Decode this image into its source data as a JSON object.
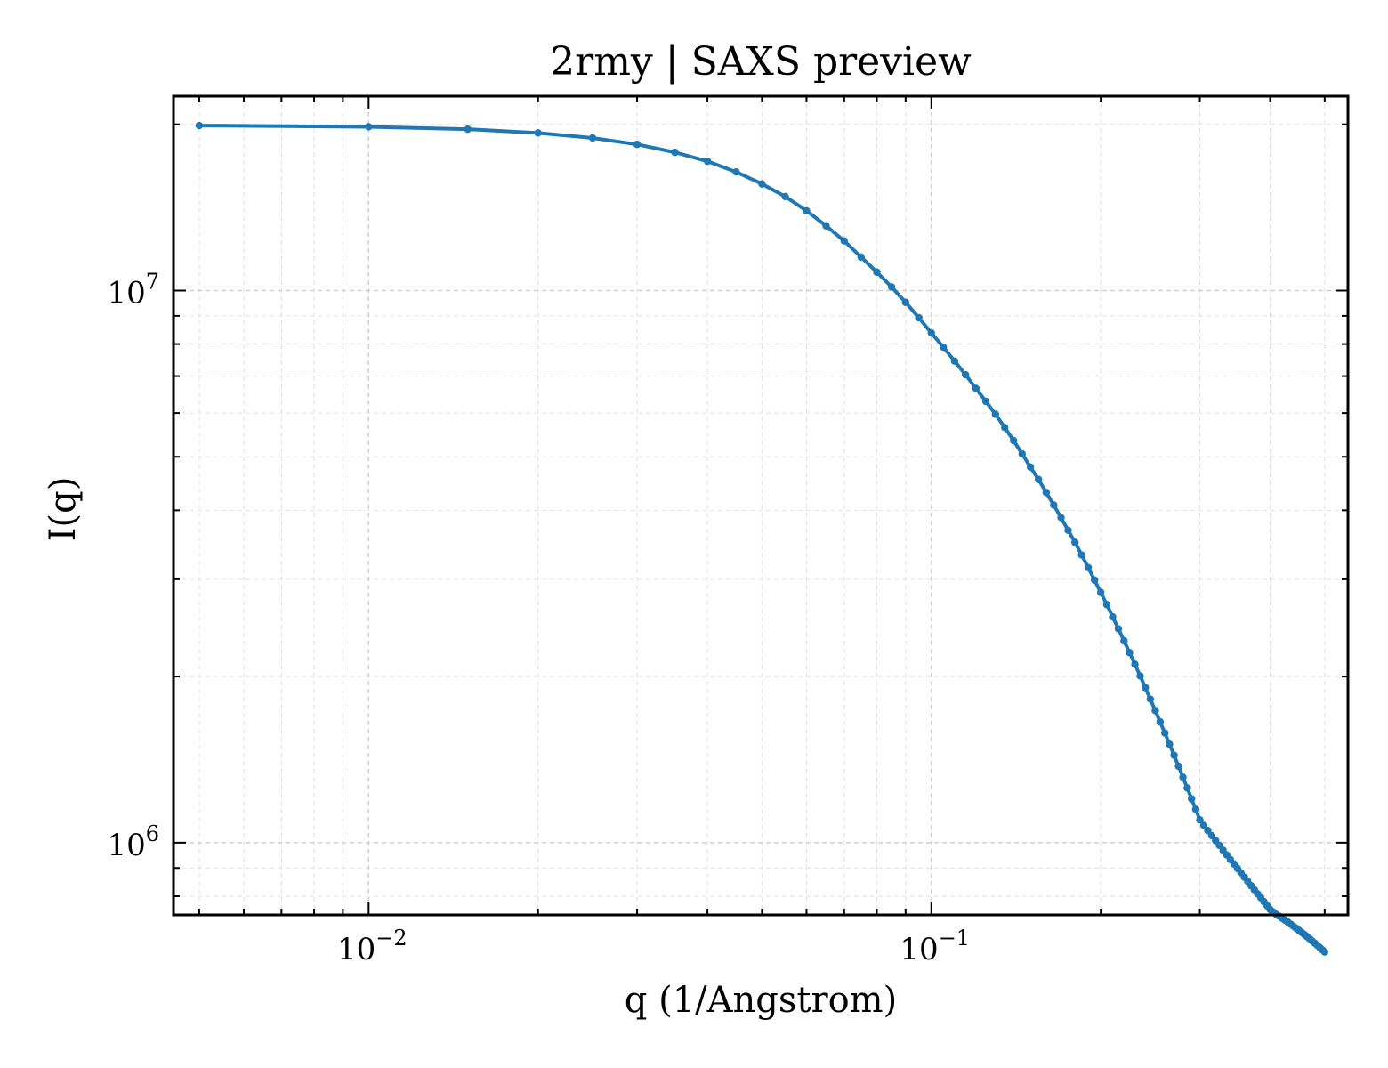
{
  "chart_data": {
    "type": "line",
    "title": "2rmy | SAXS preview",
    "xlabel": "q (1/Angstrom)",
    "ylabel": "I(q)",
    "xscale": "log",
    "yscale": "log",
    "xlim": [
      0.0045,
      0.55
    ],
    "ylim": [
      740000,
      22500000
    ],
    "grid": true,
    "series_color": "#1f77b4",
    "x_ticks": [
      {
        "value": 0.01,
        "base": "10",
        "exp": "−2"
      },
      {
        "value": 0.1,
        "base": "10",
        "exp": "−1"
      }
    ],
    "y_ticks": [
      {
        "value": 1000000,
        "base": "10",
        "exp": "6"
      },
      {
        "value": 10000000,
        "base": "10",
        "exp": "7"
      }
    ],
    "series": [
      {
        "x": [
          0.005,
          0.01,
          0.015,
          0.02,
          0.025,
          0.03,
          0.035,
          0.04,
          0.045,
          0.05,
          0.055,
          0.06,
          0.065,
          0.07,
          0.075,
          0.08,
          0.085,
          0.09,
          0.095,
          0.1,
          0.105,
          0.11,
          0.115,
          0.12,
          0.125,
          0.13,
          0.135,
          0.14,
          0.145,
          0.15,
          0.155,
          0.16,
          0.165,
          0.17,
          0.175,
          0.18,
          0.185,
          0.19,
          0.195,
          0.2,
          0.205,
          0.21,
          0.215,
          0.22,
          0.225,
          0.23,
          0.235,
          0.24,
          0.245,
          0.25,
          0.255,
          0.26,
          0.265,
          0.27,
          0.275,
          0.28,
          0.285,
          0.29,
          0.295,
          0.3,
          0.305,
          0.31,
          0.315,
          0.32,
          0.325,
          0.33,
          0.335,
          0.34,
          0.345,
          0.35,
          0.355,
          0.36,
          0.365,
          0.37,
          0.375,
          0.38,
          0.385,
          0.39,
          0.395,
          0.4,
          0.405,
          0.41,
          0.415,
          0.42,
          0.425,
          0.43,
          0.435,
          0.44,
          0.445,
          0.45,
          0.455,
          0.46,
          0.465,
          0.47,
          0.475,
          0.48,
          0.485,
          0.49,
          0.495,
          0.5
        ],
        "y": [
          19900000,
          19800000,
          19600000,
          19300000,
          18900000,
          18400000,
          17800000,
          17150000,
          16400000,
          15600000,
          14800000,
          13950000,
          13100000,
          12300000,
          11500000,
          10800000,
          10150000,
          9520000,
          8930000,
          8380000,
          7900000,
          7450000,
          7040000,
          6650000,
          6300000,
          5970000,
          5650000,
          5350000,
          5060000,
          4790000,
          4550000,
          4310000,
          4090000,
          3880000,
          3680000,
          3500000,
          3320000,
          3150000,
          2990000,
          2840000,
          2700000,
          2565000,
          2440000,
          2320000,
          2210000,
          2105000,
          2005000,
          1910000,
          1820000,
          1735000,
          1655000,
          1580000,
          1508000,
          1440000,
          1375000,
          1314000,
          1256000,
          1201000,
          1149000,
          1100000,
          1075000,
          1052000,
          1030000,
          1009000,
          989000,
          969000,
          950000,
          932000,
          915000,
          898000,
          882000,
          866000,
          851000,
          836000,
          822000,
          808000,
          795000,
          782000,
          769000,
          757000,
          749000,
          742000,
          736000,
          730000,
          724000,
          718000,
          712000,
          706000,
          700000,
          694000,
          688000,
          682000,
          676000,
          670000,
          664000,
          658000,
          652000,
          646000,
          640000,
          634000
        ]
      }
    ]
  }
}
